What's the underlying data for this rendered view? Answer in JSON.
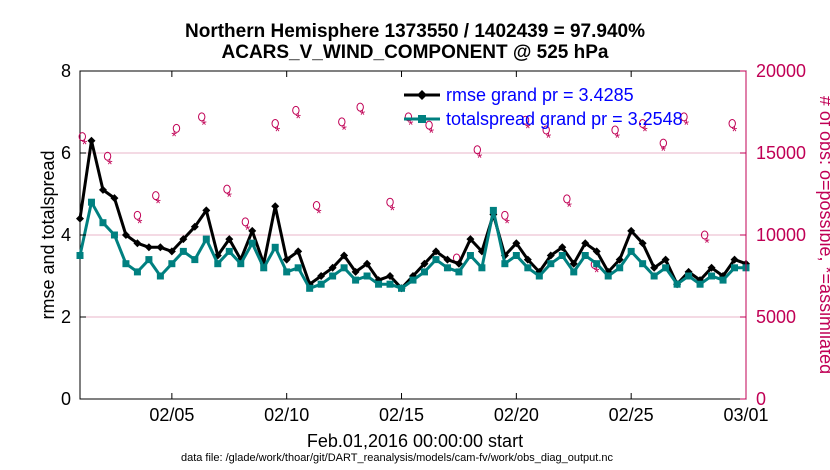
{
  "chart_data": {
    "type": "line",
    "title": "Northern Hemisphere 1373550 / 1402439 = 97.940%",
    "subtitle": "ACARS_V_WIND_COMPONENT @ 525 hPa",
    "xlabel": "Feb.01,2016 00:00:00 start",
    "ylabel": "rmse and totalspread",
    "y2label": "# of obs: o=possible, *=assimilated",
    "footer": "data file: /glade/work/thoar/git/DART_reanalysis/models/cam-fv/work/obs_diag_output.nc",
    "xlim": [
      1,
      30
    ],
    "ylim": [
      0,
      8
    ],
    "y2lim": [
      0,
      20000
    ],
    "xticks": [
      5,
      10,
      15,
      20,
      25,
      30
    ],
    "xtick_labels": [
      "02/05",
      "02/10",
      "02/15",
      "02/20",
      "02/25",
      "03/01"
    ],
    "yticks": [
      "0",
      "2",
      "4",
      "6",
      "8"
    ],
    "y2ticks": [
      "0",
      "5000",
      "10000",
      "15000",
      "20000"
    ],
    "colors": {
      "rmse": "#000000",
      "spread": "#008080",
      "obs": "#c00055",
      "legend_text": "#0000ff"
    },
    "series": [
      {
        "name": "rmse",
        "legend": "rmse grand pr = 3.4285",
        "x": [
          1.0,
          1.5,
          2.0,
          2.5,
          3.0,
          3.5,
          4.0,
          4.5,
          5.0,
          5.5,
          6.0,
          6.5,
          7.0,
          7.5,
          8.0,
          8.5,
          9.0,
          9.5,
          10.0,
          10.5,
          11.0,
          11.5,
          12.0,
          12.5,
          13.0,
          13.5,
          14.0,
          14.5,
          15.0,
          15.5,
          16.0,
          16.5,
          17.0,
          17.5,
          18.0,
          18.5,
          19.0,
          19.5,
          20.0,
          20.5,
          21.0,
          21.5,
          22.0,
          22.5,
          23.0,
          23.5,
          24.0,
          24.5,
          25.0,
          25.5,
          26.0,
          26.5,
          27.0,
          27.5,
          28.0,
          28.5,
          29.0,
          29.5,
          30.0
        ],
        "values": [
          4.4,
          6.3,
          5.1,
          4.9,
          4.0,
          3.8,
          3.7,
          3.7,
          3.6,
          3.9,
          4.2,
          4.6,
          3.5,
          3.9,
          3.4,
          4.1,
          3.3,
          4.7,
          3.4,
          3.6,
          2.8,
          3.0,
          3.2,
          3.5,
          3.1,
          3.3,
          2.9,
          3.0,
          2.7,
          3.0,
          3.3,
          3.6,
          3.4,
          3.3,
          3.9,
          3.6,
          4.5,
          3.5,
          3.8,
          3.4,
          3.1,
          3.5,
          3.7,
          3.3,
          3.8,
          3.6,
          3.1,
          3.4,
          4.1,
          3.8,
          3.2,
          3.4,
          2.8,
          3.1,
          2.9,
          3.2,
          3.0,
          3.4,
          3.3
        ]
      },
      {
        "name": "totalspread",
        "legend": "totalspread grand pr = 3.2548",
        "x": [
          1.0,
          1.5,
          2.0,
          2.5,
          3.0,
          3.5,
          4.0,
          4.5,
          5.0,
          5.5,
          6.0,
          6.5,
          7.0,
          7.5,
          8.0,
          8.5,
          9.0,
          9.5,
          10.0,
          10.5,
          11.0,
          11.5,
          12.0,
          12.5,
          13.0,
          13.5,
          14.0,
          14.5,
          15.0,
          15.5,
          16.0,
          16.5,
          17.0,
          17.5,
          18.0,
          18.5,
          19.0,
          19.5,
          20.0,
          20.5,
          21.0,
          21.5,
          22.0,
          22.5,
          23.0,
          23.5,
          24.0,
          24.5,
          25.0,
          25.5,
          26.0,
          26.5,
          27.0,
          27.5,
          28.0,
          28.5,
          29.0,
          29.5,
          30.0
        ],
        "values": [
          3.5,
          4.8,
          4.3,
          4.0,
          3.3,
          3.1,
          3.4,
          3.0,
          3.3,
          3.6,
          3.4,
          3.9,
          3.3,
          3.6,
          3.3,
          3.8,
          3.2,
          3.7,
          3.1,
          3.2,
          2.7,
          2.8,
          3.0,
          3.2,
          2.9,
          3.0,
          2.8,
          2.8,
          2.7,
          2.9,
          3.1,
          3.4,
          3.2,
          3.1,
          3.5,
          3.2,
          4.6,
          3.3,
          3.5,
          3.2,
          3.0,
          3.3,
          3.5,
          3.1,
          3.5,
          3.3,
          3.0,
          3.2,
          3.6,
          3.3,
          3.0,
          3.2,
          2.8,
          3.0,
          2.8,
          3.0,
          2.9,
          3.2,
          3.2
        ]
      },
      {
        "name": "obs_possible",
        "marker": "o",
        "axis": "right",
        "x": [
          1.1,
          2.2,
          3.5,
          4.3,
          5.2,
          6.3,
          7.4,
          8.2,
          9.5,
          10.4,
          11.3,
          12.4,
          13.2,
          14.5,
          15.3,
          16.2,
          17.4,
          18.3,
          19.5,
          20.4,
          21.3,
          22.2,
          23.4,
          24.3,
          25.5,
          26.4,
          27.3,
          28.2,
          29.4
        ],
        "values": [
          16000,
          14800,
          11200,
          12400,
          16500,
          17200,
          12800,
          10800,
          16800,
          17600,
          11800,
          16900,
          17800,
          12000,
          17200,
          16700,
          8600,
          15200,
          11200,
          17000,
          16400,
          12200,
          8200,
          16400,
          16800,
          15600,
          17200,
          10000,
          16800
        ]
      },
      {
        "name": "obs_assimilated",
        "marker": "*",
        "axis": "right",
        "x": [
          1.2,
          2.3,
          3.6,
          4.4,
          5.1,
          6.4,
          7.5,
          8.3,
          9.6,
          10.5,
          11.4,
          12.5,
          13.3,
          14.6,
          15.4,
          16.3,
          17.5,
          18.4,
          19.6,
          20.5,
          21.4,
          22.3,
          23.5,
          24.4,
          25.6,
          26.4,
          27.4,
          28.3,
          29.5
        ],
        "values": [
          15600,
          14400,
          10800,
          12000,
          16100,
          16800,
          12400,
          10400,
          16400,
          17200,
          11400,
          16500,
          17400,
          11600,
          16800,
          16300,
          8300,
          14800,
          10800,
          16600,
          16000,
          11800,
          7800,
          16000,
          16400,
          15200,
          16800,
          9600,
          16400
        ]
      }
    ]
  }
}
